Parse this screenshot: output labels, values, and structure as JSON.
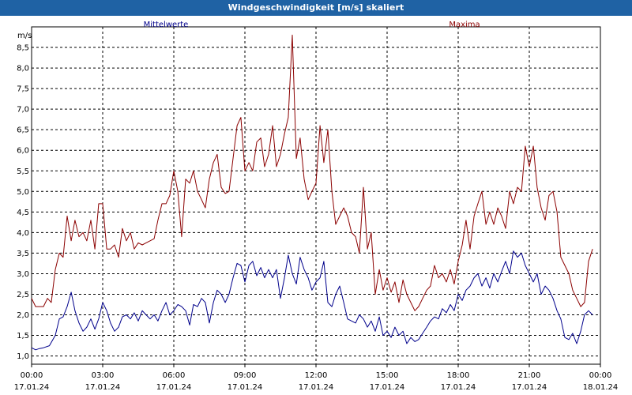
{
  "window": {
    "title": "Windgeschwindigkeit [m/s] skaliert"
  },
  "chart_data": {
    "type": "line",
    "title": "Windgeschwindigkeit [m/s] skaliert",
    "ylabel": "m/s",
    "ylim": [
      0.8,
      9.0
    ],
    "yticks": [
      "1,0",
      "1,5",
      "2,0",
      "2,5",
      "3,0",
      "3,5",
      "4,0",
      "4,5",
      "5,0",
      "5,5",
      "6,0",
      "6,5",
      "7,0",
      "7,5",
      "8,0",
      "8,5"
    ],
    "ytick_values": [
      1.0,
      1.5,
      2.0,
      2.5,
      3.0,
      3.5,
      4.0,
      4.5,
      5.0,
      5.5,
      6.0,
      6.5,
      7.0,
      7.5,
      8.0,
      8.5
    ],
    "xlim": [
      0,
      24
    ],
    "xticks": [
      {
        "hour": 0,
        "time": "00:00",
        "date": "17.01.24"
      },
      {
        "hour": 3,
        "time": "03:00",
        "date": "17.01.24"
      },
      {
        "hour": 6,
        "time": "06:00",
        "date": "17.01.24"
      },
      {
        "hour": 9,
        "time": "09:00",
        "date": "17.01.24"
      },
      {
        "hour": 12,
        "time": "12:00",
        "date": "17.01.24"
      },
      {
        "hour": 15,
        "time": "15:00",
        "date": "17.01.24"
      },
      {
        "hour": 18,
        "time": "18:00",
        "date": "17.01.24"
      },
      {
        "hour": 21,
        "time": "21:00",
        "date": "17.01.24"
      },
      {
        "hour": 24,
        "time": "00:00",
        "date": "18.01.24"
      }
    ],
    "grid": true,
    "legend": "top",
    "series": [
      {
        "name": "Mittelwerte",
        "color": "#00008b",
        "points": [
          [
            0,
            1.2
          ],
          [
            0.17,
            1.15
          ],
          [
            0.33,
            1.18
          ],
          [
            0.5,
            1.2
          ],
          [
            0.75,
            1.25
          ],
          [
            1,
            1.5
          ],
          [
            1.17,
            1.9
          ],
          [
            1.33,
            1.95
          ],
          [
            1.5,
            2.2
          ],
          [
            1.67,
            2.55
          ],
          [
            1.83,
            2.1
          ],
          [
            2,
            1.8
          ],
          [
            2.17,
            1.6
          ],
          [
            2.33,
            1.7
          ],
          [
            2.5,
            1.9
          ],
          [
            2.67,
            1.65
          ],
          [
            2.83,
            1.9
          ],
          [
            3,
            2.3
          ],
          [
            3.17,
            2.1
          ],
          [
            3.33,
            1.8
          ],
          [
            3.5,
            1.6
          ],
          [
            3.67,
            1.7
          ],
          [
            3.83,
            1.95
          ],
          [
            4,
            2.0
          ],
          [
            4.17,
            1.9
          ],
          [
            4.33,
            2.05
          ],
          [
            4.5,
            1.85
          ],
          [
            4.67,
            2.1
          ],
          [
            4.83,
            2.0
          ],
          [
            5,
            1.9
          ],
          [
            5.17,
            2.0
          ],
          [
            5.33,
            1.85
          ],
          [
            5.5,
            2.1
          ],
          [
            5.67,
            2.3
          ],
          [
            5.83,
            2.0
          ],
          [
            6,
            2.1
          ],
          [
            6.17,
            2.25
          ],
          [
            6.33,
            2.2
          ],
          [
            6.5,
            2.1
          ],
          [
            6.67,
            1.75
          ],
          [
            6.83,
            2.25
          ],
          [
            7,
            2.2
          ],
          [
            7.17,
            2.4
          ],
          [
            7.33,
            2.3
          ],
          [
            7.5,
            1.8
          ],
          [
            7.67,
            2.3
          ],
          [
            7.83,
            2.6
          ],
          [
            8,
            2.5
          ],
          [
            8.17,
            2.3
          ],
          [
            8.33,
            2.5
          ],
          [
            8.5,
            2.9
          ],
          [
            8.67,
            3.25
          ],
          [
            8.83,
            3.2
          ],
          [
            9,
            2.8
          ],
          [
            9.17,
            3.2
          ],
          [
            9.33,
            3.3
          ],
          [
            9.5,
            2.95
          ],
          [
            9.67,
            3.15
          ],
          [
            9.83,
            2.9
          ],
          [
            10,
            3.1
          ],
          [
            10.17,
            2.9
          ],
          [
            10.33,
            3.1
          ],
          [
            10.5,
            2.4
          ],
          [
            10.67,
            2.9
          ],
          [
            10.83,
            3.45
          ],
          [
            11,
            3.0
          ],
          [
            11.17,
            2.75
          ],
          [
            11.33,
            3.4
          ],
          [
            11.5,
            3.1
          ],
          [
            11.67,
            2.9
          ],
          [
            11.83,
            2.6
          ],
          [
            12,
            2.8
          ],
          [
            12.17,
            2.9
          ],
          [
            12.33,
            3.3
          ],
          [
            12.5,
            2.3
          ],
          [
            12.67,
            2.2
          ],
          [
            12.83,
            2.5
          ],
          [
            13,
            2.7
          ],
          [
            13.17,
            2.3
          ],
          [
            13.33,
            1.9
          ],
          [
            13.5,
            1.85
          ],
          [
            13.67,
            1.8
          ],
          [
            13.83,
            2.0
          ],
          [
            14,
            1.9
          ],
          [
            14.17,
            1.7
          ],
          [
            14.33,
            1.85
          ],
          [
            14.5,
            1.6
          ],
          [
            14.67,
            1.95
          ],
          [
            14.83,
            1.5
          ],
          [
            15,
            1.6
          ],
          [
            15.17,
            1.45
          ],
          [
            15.33,
            1.7
          ],
          [
            15.5,
            1.5
          ],
          [
            15.67,
            1.6
          ],
          [
            15.83,
            1.3
          ],
          [
            16,
            1.45
          ],
          [
            16.17,
            1.35
          ],
          [
            16.33,
            1.4
          ],
          [
            16.5,
            1.55
          ],
          [
            16.67,
            1.7
          ],
          [
            16.83,
            1.85
          ],
          [
            17,
            1.95
          ],
          [
            17.17,
            1.9
          ],
          [
            17.33,
            2.15
          ],
          [
            17.5,
            2.05
          ],
          [
            17.67,
            2.25
          ],
          [
            17.83,
            2.1
          ],
          [
            18,
            2.5
          ],
          [
            18.17,
            2.35
          ],
          [
            18.33,
            2.6
          ],
          [
            18.5,
            2.7
          ],
          [
            18.67,
            2.9
          ],
          [
            18.83,
            3.0
          ],
          [
            19,
            2.7
          ],
          [
            19.17,
            2.9
          ],
          [
            19.33,
            2.65
          ],
          [
            19.5,
            3.0
          ],
          [
            19.67,
            2.8
          ],
          [
            19.83,
            3.05
          ],
          [
            20,
            3.3
          ],
          [
            20.17,
            3.0
          ],
          [
            20.33,
            3.55
          ],
          [
            20.5,
            3.4
          ],
          [
            20.67,
            3.5
          ],
          [
            20.83,
            3.2
          ],
          [
            21,
            3.0
          ],
          [
            21.17,
            2.8
          ],
          [
            21.33,
            3.0
          ],
          [
            21.5,
            2.5
          ],
          [
            21.67,
            2.7
          ],
          [
            21.83,
            2.6
          ],
          [
            22,
            2.4
          ],
          [
            22.17,
            2.1
          ],
          [
            22.33,
            1.9
          ],
          [
            22.5,
            1.45
          ],
          [
            22.67,
            1.4
          ],
          [
            22.83,
            1.55
          ],
          [
            23,
            1.3
          ],
          [
            23.17,
            1.6
          ],
          [
            23.33,
            2.0
          ],
          [
            23.5,
            2.1
          ],
          [
            23.67,
            2.0
          ]
        ]
      },
      {
        "name": "Maxima",
        "color": "#8b0000",
        "points": [
          [
            0,
            2.4
          ],
          [
            0.17,
            2.2
          ],
          [
            0.33,
            2.2
          ],
          [
            0.5,
            2.2
          ],
          [
            0.67,
            2.4
          ],
          [
            0.83,
            2.3
          ],
          [
            1,
            3.1
          ],
          [
            1.17,
            3.5
          ],
          [
            1.33,
            3.4
          ],
          [
            1.5,
            4.4
          ],
          [
            1.67,
            3.8
          ],
          [
            1.83,
            4.3
          ],
          [
            2,
            3.9
          ],
          [
            2.17,
            4.0
          ],
          [
            2.33,
            3.8
          ],
          [
            2.5,
            4.3
          ],
          [
            2.67,
            3.6
          ],
          [
            2.83,
            4.7
          ],
          [
            3,
            4.7
          ],
          [
            3.17,
            3.6
          ],
          [
            3.33,
            3.6
          ],
          [
            3.5,
            3.7
          ],
          [
            3.67,
            3.4
          ],
          [
            3.83,
            4.1
          ],
          [
            4,
            3.8
          ],
          [
            4.17,
            4.0
          ],
          [
            4.33,
            3.6
          ],
          [
            4.5,
            3.75
          ],
          [
            4.67,
            3.7
          ],
          [
            4.83,
            3.75
          ],
          [
            5,
            3.8
          ],
          [
            5.17,
            3.85
          ],
          [
            5.33,
            4.3
          ],
          [
            5.5,
            4.7
          ],
          [
            5.67,
            4.7
          ],
          [
            5.83,
            4.9
          ],
          [
            6,
            5.5
          ],
          [
            6.17,
            5.0
          ],
          [
            6.33,
            3.9
          ],
          [
            6.5,
            5.3
          ],
          [
            6.67,
            5.2
          ],
          [
            6.83,
            5.5
          ],
          [
            7,
            5.0
          ],
          [
            7.17,
            4.8
          ],
          [
            7.33,
            4.6
          ],
          [
            7.5,
            5.3
          ],
          [
            7.67,
            5.7
          ],
          [
            7.83,
            5.9
          ],
          [
            8,
            5.1
          ],
          [
            8.17,
            4.95
          ],
          [
            8.33,
            5.0
          ],
          [
            8.5,
            5.8
          ],
          [
            8.67,
            6.6
          ],
          [
            8.83,
            6.8
          ],
          [
            9,
            5.5
          ],
          [
            9.17,
            5.7
          ],
          [
            9.33,
            5.5
          ],
          [
            9.5,
            6.2
          ],
          [
            9.67,
            6.3
          ],
          [
            9.83,
            5.6
          ],
          [
            10,
            5.9
          ],
          [
            10.17,
            6.6
          ],
          [
            10.33,
            5.6
          ],
          [
            10.5,
            5.9
          ],
          [
            10.67,
            6.4
          ],
          [
            10.83,
            6.8
          ],
          [
            11,
            8.8
          ],
          [
            11.17,
            5.8
          ],
          [
            11.33,
            6.3
          ],
          [
            11.5,
            5.3
          ],
          [
            11.67,
            4.8
          ],
          [
            11.83,
            5.0
          ],
          [
            12,
            5.2
          ],
          [
            12.17,
            6.6
          ],
          [
            12.33,
            5.7
          ],
          [
            12.5,
            6.5
          ],
          [
            12.67,
            5.0
          ],
          [
            12.83,
            4.2
          ],
          [
            13,
            4.4
          ],
          [
            13.17,
            4.6
          ],
          [
            13.33,
            4.4
          ],
          [
            13.5,
            4.0
          ],
          [
            13.67,
            3.9
          ],
          [
            13.83,
            3.5
          ],
          [
            14,
            5.1
          ],
          [
            14.17,
            3.6
          ],
          [
            14.33,
            4.0
          ],
          [
            14.5,
            2.5
          ],
          [
            14.67,
            3.1
          ],
          [
            14.83,
            2.6
          ],
          [
            15,
            2.9
          ],
          [
            15.17,
            2.55
          ],
          [
            15.33,
            2.8
          ],
          [
            15.5,
            2.3
          ],
          [
            15.67,
            2.85
          ],
          [
            15.83,
            2.5
          ],
          [
            16,
            2.3
          ],
          [
            16.17,
            2.1
          ],
          [
            16.33,
            2.2
          ],
          [
            16.5,
            2.4
          ],
          [
            16.67,
            2.6
          ],
          [
            16.83,
            2.7
          ],
          [
            17,
            3.2
          ],
          [
            17.17,
            2.9
          ],
          [
            17.33,
            3.0
          ],
          [
            17.5,
            2.8
          ],
          [
            17.67,
            3.1
          ],
          [
            17.83,
            2.75
          ],
          [
            18,
            3.3
          ],
          [
            18.17,
            3.7
          ],
          [
            18.33,
            4.3
          ],
          [
            18.5,
            3.6
          ],
          [
            18.67,
            4.4
          ],
          [
            18.83,
            4.7
          ],
          [
            19,
            5.0
          ],
          [
            19.17,
            4.2
          ],
          [
            19.33,
            4.5
          ],
          [
            19.5,
            4.2
          ],
          [
            19.67,
            4.6
          ],
          [
            19.83,
            4.4
          ],
          [
            20,
            4.1
          ],
          [
            20.17,
            5.0
          ],
          [
            20.33,
            4.7
          ],
          [
            20.5,
            5.1
          ],
          [
            20.67,
            5.0
          ],
          [
            20.83,
            6.1
          ],
          [
            21,
            5.6
          ],
          [
            21.17,
            6.1
          ],
          [
            21.33,
            5.1
          ],
          [
            21.5,
            4.6
          ],
          [
            21.67,
            4.3
          ],
          [
            21.83,
            4.9
          ],
          [
            22,
            5.0
          ],
          [
            22.17,
            4.5
          ],
          [
            22.33,
            3.4
          ],
          [
            22.5,
            3.2
          ],
          [
            22.67,
            3.0
          ],
          [
            22.83,
            2.6
          ],
          [
            23,
            2.4
          ],
          [
            23.17,
            2.2
          ],
          [
            23.33,
            2.3
          ],
          [
            23.5,
            3.3
          ],
          [
            23.67,
            3.6
          ]
        ]
      }
    ]
  }
}
